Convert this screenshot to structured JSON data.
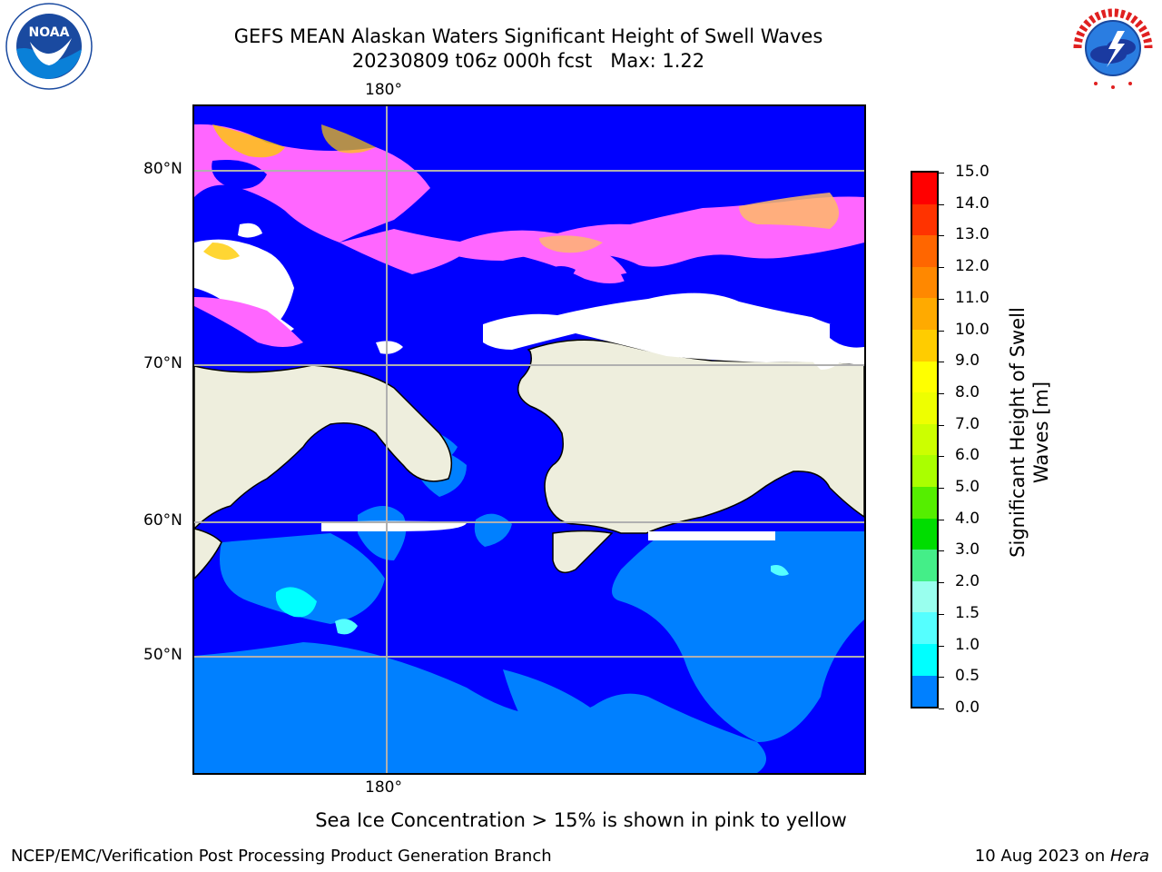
{
  "header": {
    "title_line1": "GEFS MEAN Alaskan Waters Significant Height of Swell Waves",
    "title_line2": "20230809 t06z 000h fcst   Max: 1.22"
  },
  "logos": {
    "left": "NOAA",
    "right": "NATIONAL WEATHER SERVICE"
  },
  "map": {
    "top_lon_label": "180°",
    "bottom_lon_label": "180°",
    "lat_labels": [
      "80°N",
      "70°N",
      "60°N",
      "50°N"
    ],
    "colors": {
      "land": "#eeeedd",
      "ocean_low": "#0000ff",
      "ocean_mid": "#0080ff",
      "ocean_high": "#00ffff",
      "ice_high": "#ff55ff",
      "ice_low": "#ffcc00",
      "no_data": "#ffffff",
      "grid": "#b0b0b0"
    }
  },
  "colorbar": {
    "label": "Significant Height of Swell Waves [m]",
    "ticks": [
      "15.0",
      "14.0",
      "13.0",
      "12.0",
      "11.0",
      "10.0",
      "9.0",
      "8.0",
      "7.0",
      "6.0",
      "5.0",
      "4.0",
      "3.0",
      "2.0",
      "1.5",
      "1.0",
      "0.5",
      "0.0"
    ],
    "colors": [
      "#ff0000",
      "#ff3300",
      "#ff6600",
      "#ff8800",
      "#ffaa00",
      "#ffcc00",
      "#ffff00",
      "#eeff00",
      "#ccff00",
      "#aaff00",
      "#55ee00",
      "#00dd00",
      "#44ee88",
      "#99ffee",
      "#55ffff",
      "#00ffff",
      "#0080ff",
      "#0000ff"
    ]
  },
  "footer": {
    "note": "Sea Ice Concentration > 15% is shown in pink to yellow",
    "left": "NCEP/EMC/Verification Post Processing Product Generation Branch",
    "right_date": "10 Aug 2023 on ",
    "right_machine": "Hera"
  }
}
